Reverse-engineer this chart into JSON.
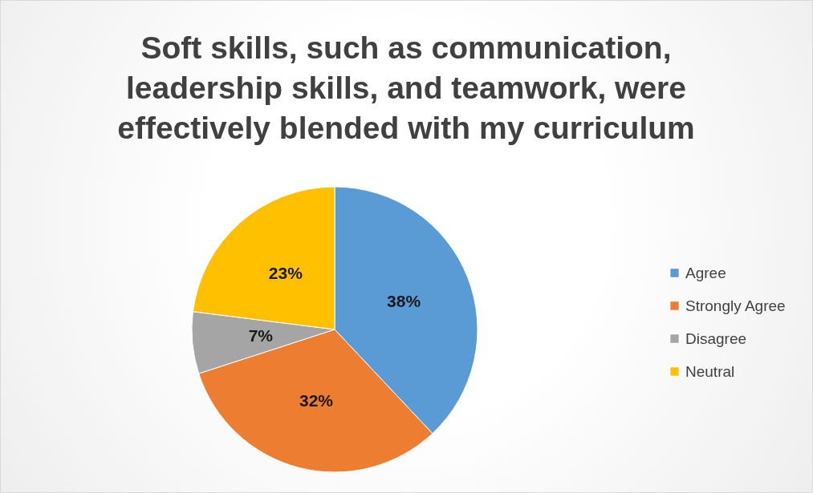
{
  "chart_data": {
    "type": "pie",
    "title": "Soft skills, such as communication, leadership skills, and teamwork, were effectively blended with my curriculum",
    "categories": [
      "Agree",
      "Strongly Agree",
      "Disagree",
      "Neutral"
    ],
    "values": [
      38,
      32,
      7,
      23
    ],
    "colors": [
      "#5b9bd5",
      "#ed7d31",
      "#a5a5a5",
      "#ffc000"
    ],
    "value_labels": [
      "38%",
      "32%",
      "7%",
      "23%"
    ],
    "legend": "right"
  }
}
